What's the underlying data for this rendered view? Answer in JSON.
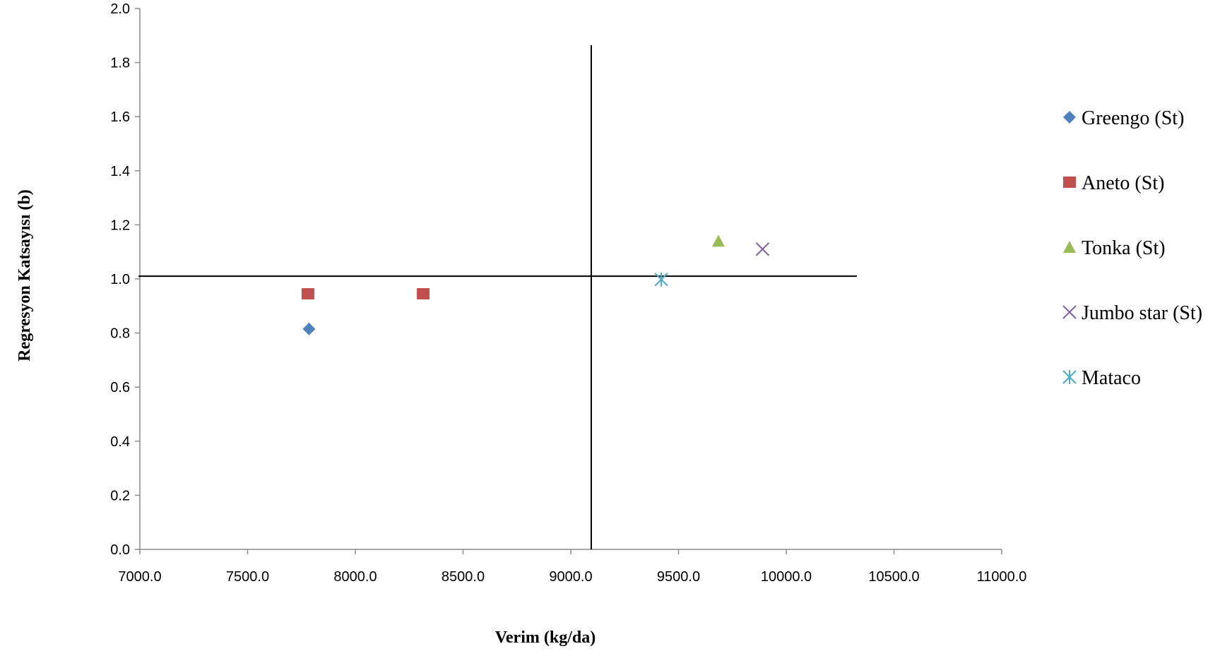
{
  "chart_data": {
    "type": "scatter",
    "title": "",
    "xlabel": "Verim (kg/da)",
    "ylabel": "Regresyon Katsayısı (b)",
    "xlim": [
      7000,
      11000
    ],
    "ylim": [
      0,
      2
    ],
    "xticks": [
      7000,
      7500,
      8000,
      8500,
      9000,
      9500,
      10000,
      10500,
      11000
    ],
    "xtick_labels": [
      "7000.0",
      "7500.0",
      "8000.0",
      "8500.0",
      "9000.0",
      "9500.0",
      "10000.0",
      "10500.0",
      "11000.0"
    ],
    "yticks": [
      0,
      0.2,
      0.4,
      0.6,
      0.8,
      1.0,
      1.2,
      1.4,
      1.6,
      1.8,
      2.0
    ],
    "ytick_labels": [
      "0.0",
      "0.2",
      "0.4",
      "0.6",
      "0.8",
      "1.0",
      "1.2",
      "1.4",
      "1.6",
      "1.8",
      "2.0"
    ],
    "grid": false,
    "legend": "right",
    "reference_lines": {
      "x": 9095,
      "y": 1.01
    },
    "series": [
      {
        "name": "Greengo (St)",
        "marker": "diamond",
        "color": "#4F81BD",
        "points": [
          [
            7785,
            0.815
          ]
        ]
      },
      {
        "name": "Aneto (St)",
        "marker": "square",
        "color": "#C0504D",
        "points": [
          [
            7780,
            0.945
          ],
          [
            8315,
            0.945
          ]
        ]
      },
      {
        "name": "Tonka (St)",
        "marker": "triangle",
        "color": "#9BBB59",
        "points": [
          [
            9685,
            1.14
          ]
        ]
      },
      {
        "name": "Jumbo star (St)",
        "marker": "x",
        "color": "#8064A2",
        "points": [
          [
            9890,
            1.11
          ]
        ]
      },
      {
        "name": "Mataco",
        "marker": "asterisk",
        "color": "#4BACC6",
        "points": [
          [
            9420,
            0.998
          ]
        ]
      }
    ]
  }
}
